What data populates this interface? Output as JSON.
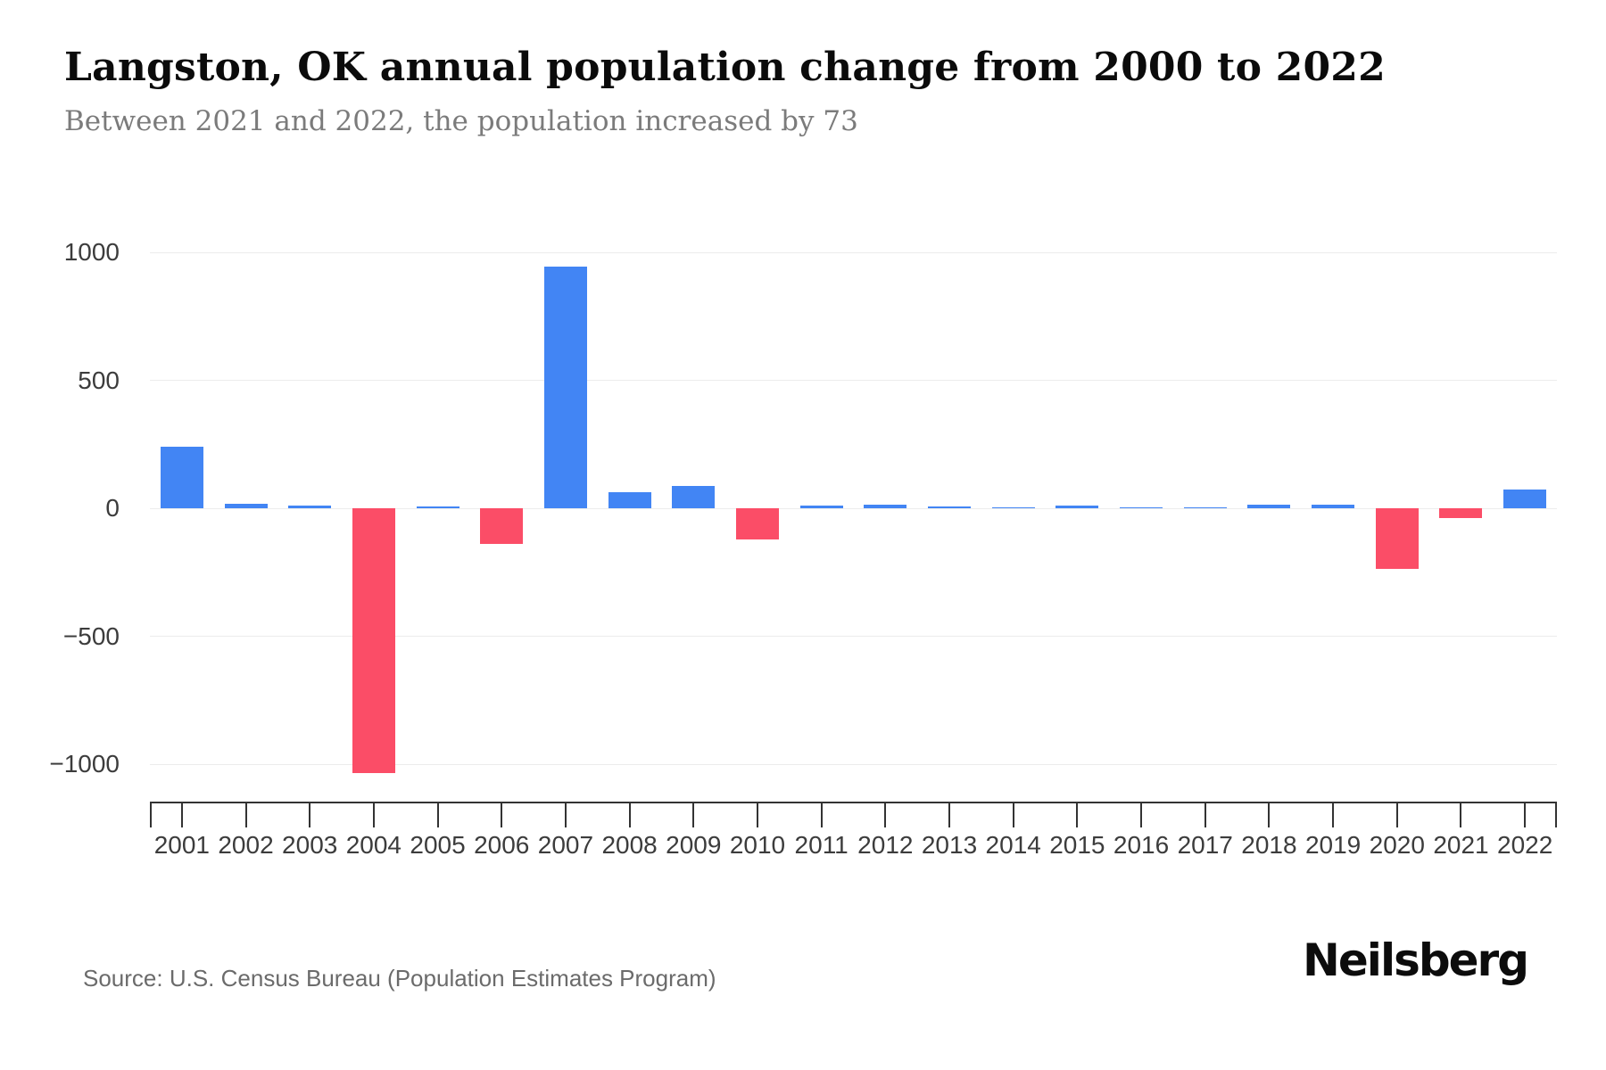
{
  "chart_data": {
    "type": "bar",
    "title": "Langston, OK annual population change from 2000 to 2022",
    "subtitle": "Between 2021 and 2022, the population increased by 73",
    "categories": [
      "2001",
      "2002",
      "2003",
      "2004",
      "2005",
      "2006",
      "2007",
      "2008",
      "2009",
      "2010",
      "2011",
      "2012",
      "2013",
      "2014",
      "2015",
      "2016",
      "2017",
      "2018",
      "2019",
      "2020",
      "2021",
      "2022"
    ],
    "values": [
      240,
      18,
      11,
      -1035,
      8,
      -138,
      945,
      64,
      88,
      -122,
      10,
      13,
      8,
      4,
      10,
      5,
      3,
      15,
      13,
      -237,
      -37,
      73
    ],
    "xlabel": "",
    "ylabel": "",
    "ylim": [
      -1000,
      1000
    ],
    "yticks": [
      1000,
      500,
      0,
      -500,
      -1000
    ],
    "ytick_labels": [
      "1000",
      "500",
      "0",
      "−500",
      "−1000"
    ],
    "grid": true,
    "legend": false,
    "bar_colors": {
      "positive": "#4285F4",
      "negative": "#FB4D67"
    }
  },
  "footer": {
    "source": "Source: U.S. Census Bureau (Population Estimates Program)",
    "logo_text": "Neilsberg"
  },
  "colors": {
    "background": "#ffffff",
    "grid": "#ececec",
    "axis": "#333333",
    "tick_text": "#3c3c3c",
    "title_text": "#0b0b0b",
    "subtitle_text": "#7b7b7b",
    "source_text": "#6b6b6b",
    "logo_text": "#0c0c0c"
  }
}
